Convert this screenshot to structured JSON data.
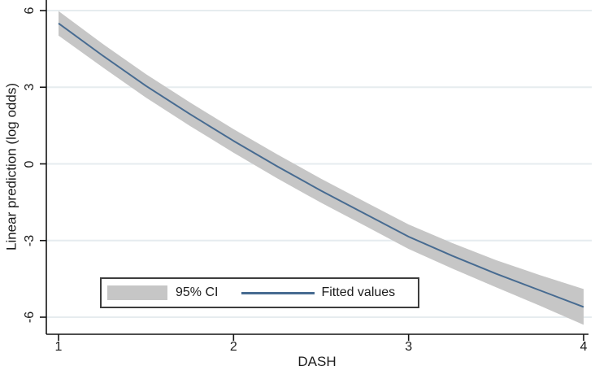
{
  "figure": {
    "background": "#ffffff"
  },
  "chart_data": {
    "type": "line",
    "title": "",
    "xlabel": "DASH",
    "ylabel": "Linear prediction (log odds)",
    "x_ticks": [
      1,
      2,
      3,
      4
    ],
    "y_ticks": [
      6,
      3,
      0,
      -3,
      -6
    ],
    "xlim": [
      0.93,
      4.03
    ],
    "ylim": [
      -6.65,
      6.4
    ],
    "grid": "horizontal-only",
    "legend_position": "inside-bottom-left",
    "series": [
      {
        "name": "95% CI",
        "type": "confidence-band",
        "x": [
          1,
          1.25,
          1.5,
          1.75,
          2,
          2.25,
          2.5,
          2.75,
          3,
          3.25,
          3.5,
          3.75,
          4
        ],
        "y_high": [
          5.98,
          4.71,
          3.51,
          2.41,
          1.36,
          0.37,
          -0.58,
          -1.48,
          -2.37,
          -3.1,
          -3.77,
          -4.35,
          -4.9
        ],
        "y_low": [
          5.02,
          3.79,
          2.59,
          1.49,
          0.44,
          -0.57,
          -1.52,
          -2.42,
          -3.33,
          -4.1,
          -4.83,
          -5.55,
          -6.3
        ]
      },
      {
        "name": "Fitted values",
        "type": "line",
        "x": [
          1,
          1.25,
          1.5,
          1.75,
          2,
          2.25,
          2.5,
          2.75,
          3,
          3.25,
          3.5,
          3.75,
          4
        ],
        "y": [
          5.5,
          4.25,
          3.05,
          1.95,
          0.9,
          -0.1,
          -1.05,
          -1.95,
          -2.85,
          -3.6,
          -4.3,
          -4.95,
          -5.6
        ]
      }
    ],
    "legend": [
      {
        "label": "95% CI",
        "swatch": "band"
      },
      {
        "label": "Fitted values",
        "swatch": "line"
      }
    ],
    "colors": {
      "band": "#c6c6c6",
      "line": "#476b91",
      "grid": "#e6ecef",
      "axis": "#141414",
      "text": "#1c1c1c",
      "legend_border": "#3d3d3d"
    }
  }
}
